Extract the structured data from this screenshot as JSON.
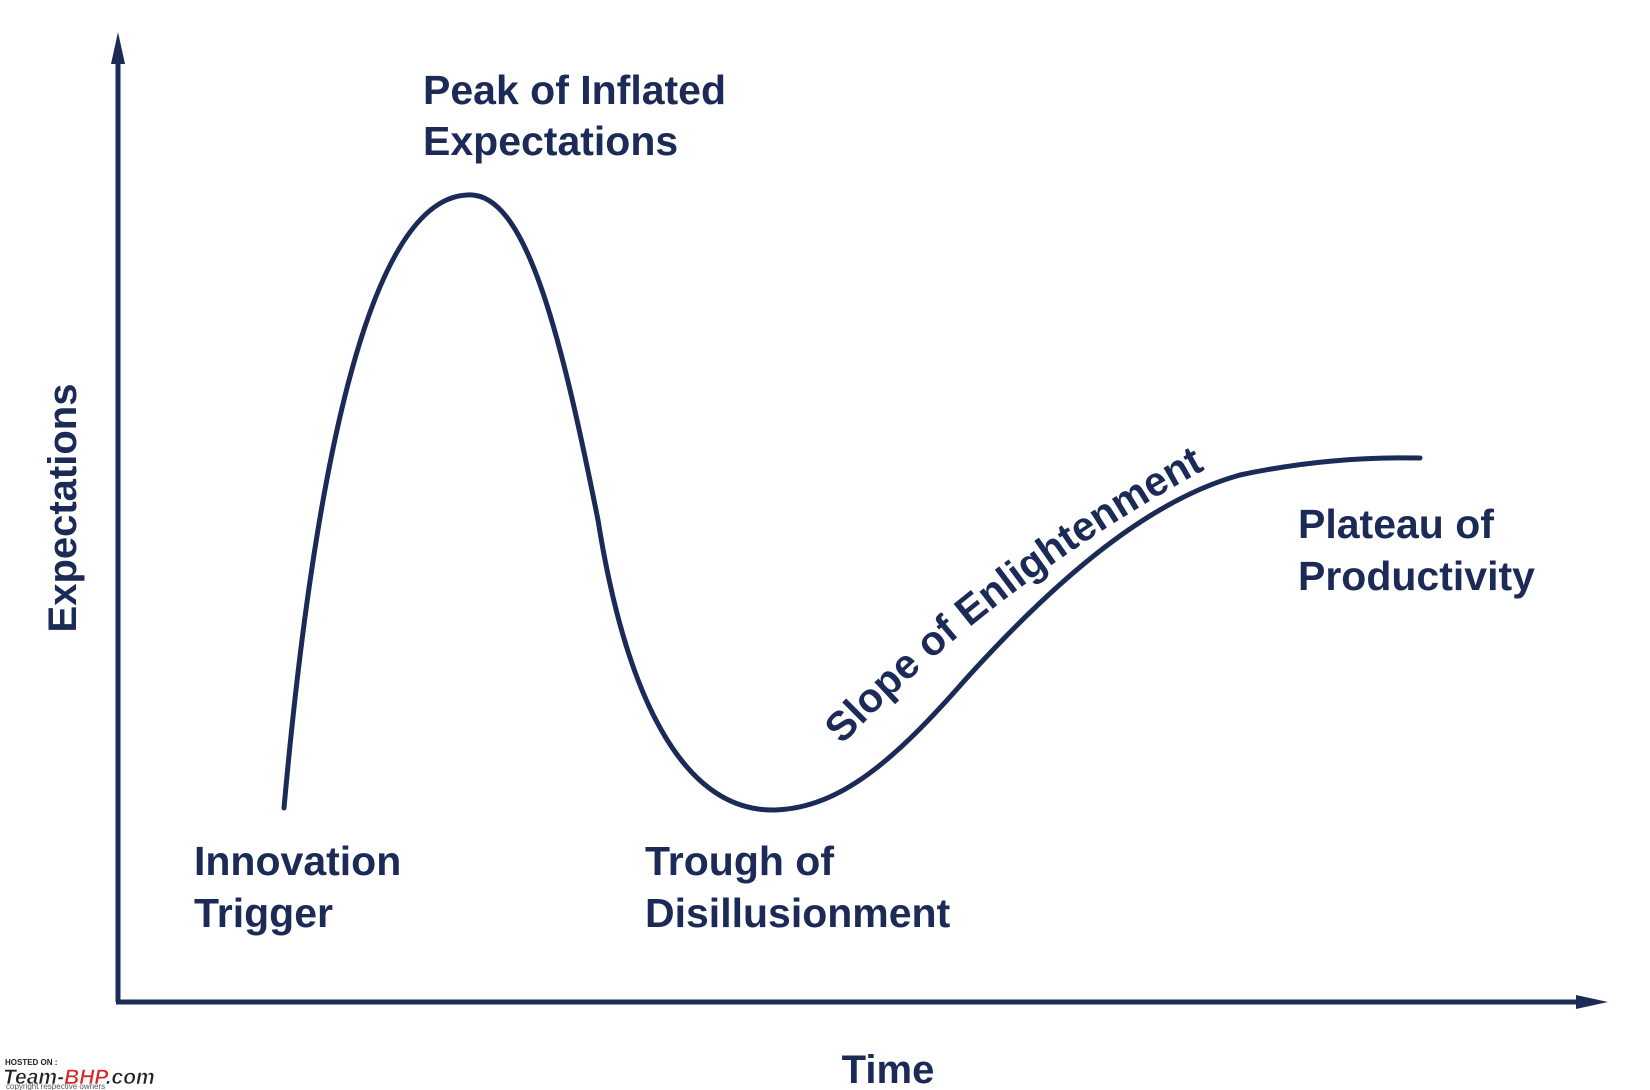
{
  "axes": {
    "x_label": "Time",
    "y_label": "Expectations"
  },
  "phases": {
    "innovation_trigger": [
      "Innovation",
      "Trigger"
    ],
    "peak": [
      "Peak of Inflated",
      "Expectations"
    ],
    "trough": [
      "Trough of",
      "Disillusionment"
    ],
    "slope": "Slope of Enlightenment",
    "plateau": [
      "Plateau of",
      "Productivity"
    ]
  },
  "watermark": {
    "hosted_on": "HOSTED ON :",
    "brand_prefix": "Team-",
    "brand_highlight": "BHP",
    "brand_suffix": ".com",
    "copyright": "copyright respective owners"
  },
  "colors": {
    "ink": "#1b2a57",
    "watermark_red": "#d9262b",
    "watermark_dark": "#222222"
  }
}
